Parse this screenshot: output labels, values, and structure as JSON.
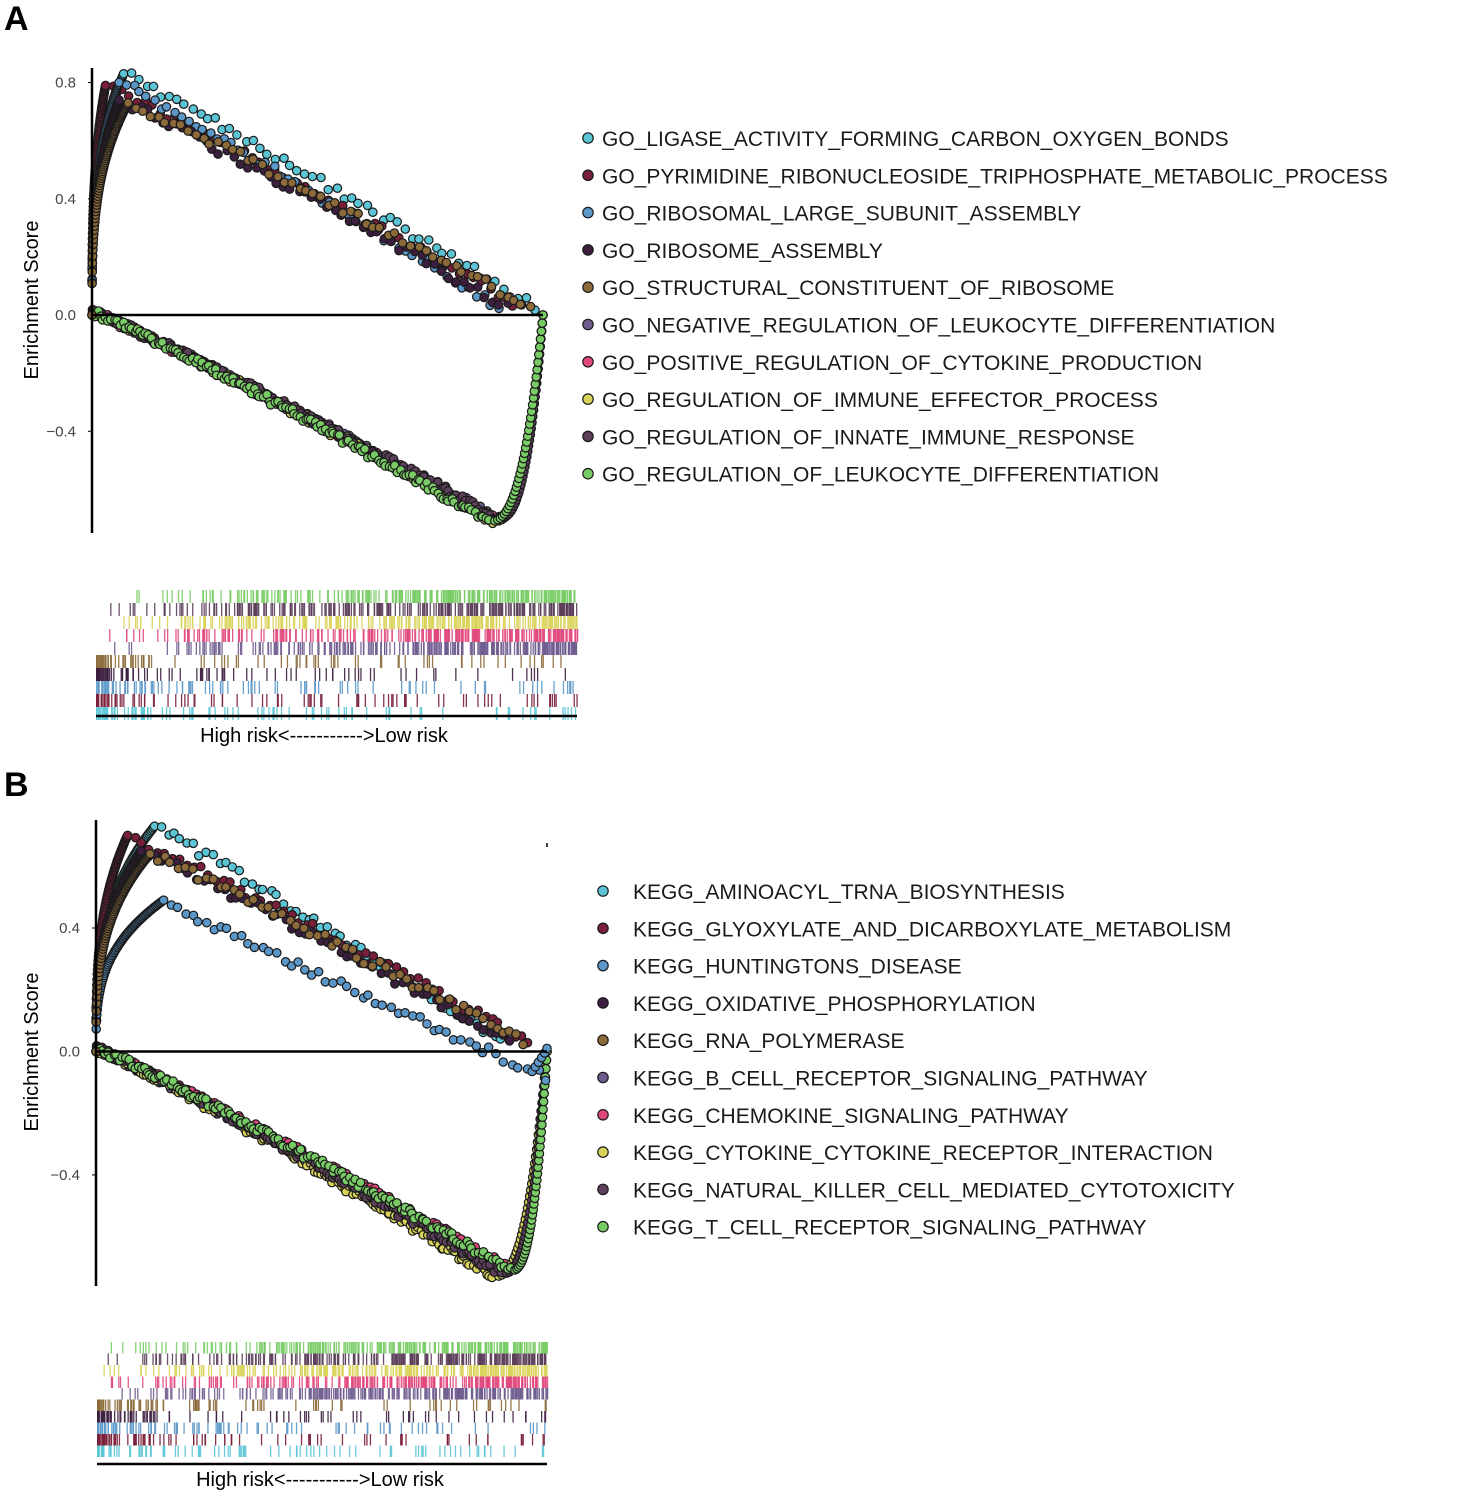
{
  "colors": [
    "#5bc5d6",
    "#7a1f3a",
    "#5b97c9",
    "#3c1f3f",
    "#8c6a3a",
    "#6f5c8f",
    "#e0487d",
    "#d9d35a",
    "#5c3f5a",
    "#79cc65"
  ],
  "panels": [
    {
      "label": "A",
      "ylabel": "Enrichment Score",
      "risk_label": "High risk<----------->Low risk",
      "y_ticks": [
        "0.8",
        "0.4",
        "0.0",
        "−0.4"
      ],
      "chart_data": {
        "type": "line",
        "title": "",
        "xlabel": "High risk<----------->Low risk",
        "ylabel": "Enrichment Score",
        "ylim": [
          -0.75,
          0.85
        ],
        "y_ticks": [
          0.8,
          0.4,
          0.0,
          -0.4
        ],
        "legend": "right",
        "grid": false,
        "series": [
          {
            "name": "GO_LIGASE_ACTIVITY_FORMING_CARBON_OXYGEN_BONDS",
            "color": "#5bc5d6",
            "peak": 0.83,
            "peak_pos": 0.07,
            "end_pos": 0.98,
            "direction": "up"
          },
          {
            "name": "GO_PYRIMIDINE_RIBONUCLEOSIDE_TRIPHOSPHATE_METABOLIC_PROCESS",
            "color": "#7a1f3a",
            "peak": 0.79,
            "peak_pos": 0.03,
            "end_pos": 0.95,
            "direction": "up"
          },
          {
            "name": "GO_RIBOSOMAL_LARGE_SUBUNIT_ASSEMBLY",
            "color": "#5b97c9",
            "peak": 0.8,
            "peak_pos": 0.06,
            "end_pos": 0.9,
            "direction": "up"
          },
          {
            "name": "GO_RIBOSOME_ASSEMBLY",
            "color": "#3c1f3f",
            "peak": 0.74,
            "peak_pos": 0.06,
            "end_pos": 0.92,
            "direction": "up"
          },
          {
            "name": "GO_STRUCTURAL_CONSTITUENT_OF_RIBOSOME",
            "color": "#8c6a3a",
            "peak": 0.73,
            "peak_pos": 0.08,
            "end_pos": 0.97,
            "direction": "up"
          },
          {
            "name": "GO_NEGATIVE_REGULATION_OF_LEUKOCYTE_DIFFERENTIATION",
            "color": "#6f5c8f",
            "peak": -0.7,
            "peak_pos": 0.9,
            "direction": "down"
          },
          {
            "name": "GO_POSITIVE_REGULATION_OF_CYTOKINE_PRODUCTION",
            "color": "#e0487d",
            "peak": -0.7,
            "peak_pos": 0.89,
            "direction": "down"
          },
          {
            "name": "GO_REGULATION_OF_IMMUNE_EFFECTOR_PROCESS",
            "color": "#d9d35a",
            "peak": -0.71,
            "peak_pos": 0.89,
            "direction": "down"
          },
          {
            "name": "GO_REGULATION_OF_INNATE_IMMUNE_RESPONSE",
            "color": "#5c3f5a",
            "peak": -0.7,
            "peak_pos": 0.9,
            "direction": "down"
          },
          {
            "name": "GO_REGULATION_OF_LEUKOCYTE_DIFFERENTIATION",
            "color": "#79cc65",
            "peak": -0.71,
            "peak_pos": 0.88,
            "direction": "down"
          }
        ]
      }
    },
    {
      "label": "B",
      "ylabel": "Enrichment Score",
      "risk_label": "High risk<----------->Low risk",
      "y_ticks": [
        "0.4",
        "0.0",
        "−0.4"
      ],
      "chart_data": {
        "type": "line",
        "title": "",
        "xlabel": "High risk<----------->Low risk",
        "ylabel": "Enrichment Score",
        "ylim": [
          -0.76,
          0.75
        ],
        "y_ticks": [
          0.4,
          0.0,
          -0.4
        ],
        "legend": "right",
        "grid": false,
        "series": [
          {
            "name": "KEGG_AMINOACYL_TRNA_BIOSYNTHESIS",
            "color": "#5bc5d6",
            "peak": 0.73,
            "peak_pos": 0.13,
            "end_pos": 0.9,
            "direction": "up"
          },
          {
            "name": "KEGG_GLYOXYLATE_AND_DICARBOXYLATE_METABOLISM",
            "color": "#7a1f3a",
            "peak": 0.7,
            "peak_pos": 0.07,
            "end_pos": 0.96,
            "direction": "up"
          },
          {
            "name": "KEGG_HUNTINGTONS_DISEASE",
            "color": "#5b97c9",
            "peak": 0.49,
            "peak_pos": 0.15,
            "end_pos": 1.0,
            "direction": "up",
            "trough": -0.08
          },
          {
            "name": "KEGG_OXIDATIVE_PHOSPHORYLATION",
            "color": "#3c1f3f",
            "peak": 0.65,
            "peak_pos": 0.1,
            "end_pos": 0.92,
            "direction": "up"
          },
          {
            "name": "KEGG_RNA_POLYMERASE",
            "color": "#8c6a3a",
            "peak": 0.64,
            "peak_pos": 0.12,
            "end_pos": 0.95,
            "direction": "up"
          },
          {
            "name": "KEGG_B_CELL_RECEPTOR_SIGNALING_PATHWAY",
            "color": "#6f5c8f",
            "peak": -0.72,
            "peak_pos": 0.9,
            "direction": "down"
          },
          {
            "name": "KEGG_CHEMOKINE_SIGNALING_PATHWAY",
            "color": "#e0487d",
            "peak": -0.7,
            "peak_pos": 0.91,
            "direction": "down"
          },
          {
            "name": "KEGG_CYTOKINE_CYTOKINE_RECEPTOR_INTERACTION",
            "color": "#d9d35a",
            "peak": -0.73,
            "peak_pos": 0.88,
            "direction": "down"
          },
          {
            "name": "KEGG_NATURAL_KILLER_CELL_MEDIATED_CYTOTOXICITY",
            "color": "#5c3f5a",
            "peak": -0.72,
            "peak_pos": 0.9,
            "direction": "down"
          },
          {
            "name": "KEGG_T_CELL_RECEPTOR_SIGNALING_PATHWAY",
            "color": "#79cc65",
            "peak": -0.71,
            "peak_pos": 0.92,
            "direction": "down"
          }
        ]
      }
    }
  ]
}
